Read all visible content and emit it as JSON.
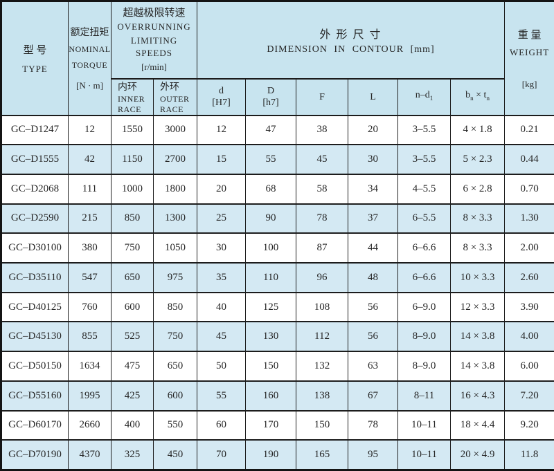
{
  "colors": {
    "header_bg": "#c8e4ef",
    "row_alt_bg": "#d4e9f3",
    "row_bg": "#ffffff",
    "border": "#1c1c1c",
    "text": "#262626"
  },
  "table": {
    "columns": [
      "type",
      "torque",
      "inner",
      "outer",
      "d",
      "D",
      "F",
      "L",
      "nd1",
      "bt",
      "weight"
    ],
    "header": {
      "type": {
        "zh": "型 号",
        "en": "TYPE"
      },
      "torque": {
        "zh": "额定扭矩",
        "en1": "NOMINAL",
        "en2": "TORQUE",
        "unit": "[N · m]"
      },
      "speeds": {
        "zh": "超越极限转速",
        "en1": "OVERRUNNING",
        "en2": "LIMITING SPEEDS",
        "unit": "[r/min]"
      },
      "inner": {
        "zh": "内环",
        "en1": "INNER",
        "en2": "RACE"
      },
      "outer": {
        "zh": "外环",
        "en1": "OUTER",
        "en2": "RACE"
      },
      "dimension": {
        "zh": "外 形 尺 寸",
        "en": "DIMENSION IN CONTOUR [mm]"
      },
      "d": {
        "line1": "d",
        "line2": "[H7]"
      },
      "D": {
        "line1": "D",
        "line2": "[h7]"
      },
      "F": "F",
      "L": "L",
      "nd1": {
        "base": "n–d",
        "sub": "1"
      },
      "bt": {
        "p1": "b",
        "s1": "n",
        "p2": " × t",
        "s2": "n"
      },
      "weight": {
        "zh": "重 量",
        "en": "WEIGHT",
        "unit": "[kg]"
      }
    },
    "rows": [
      {
        "type": "GC–D1247",
        "torque": "12",
        "inner": "1550",
        "outer": "3000",
        "d": "12",
        "D": "47",
        "F": "38",
        "L": "20",
        "nd1": "3–5.5",
        "bt": "4 × 1.8",
        "weight": "0.21"
      },
      {
        "type": "GC–D1555",
        "torque": "42",
        "inner": "1150",
        "outer": "2700",
        "d": "15",
        "D": "55",
        "F": "45",
        "L": "30",
        "nd1": "3–5.5",
        "bt": "5 × 2.3",
        "weight": "0.44"
      },
      {
        "type": "GC–D2068",
        "torque": "111",
        "inner": "1000",
        "outer": "1800",
        "d": "20",
        "D": "68",
        "F": "58",
        "L": "34",
        "nd1": "4–5.5",
        "bt": "6 × 2.8",
        "weight": "0.70"
      },
      {
        "type": "GC–D2590",
        "torque": "215",
        "inner": "850",
        "outer": "1300",
        "d": "25",
        "D": "90",
        "F": "78",
        "L": "37",
        "nd1": "6–5.5",
        "bt": "8 × 3.3",
        "weight": "1.30"
      },
      {
        "type": "GC–D30100",
        "torque": "380",
        "inner": "750",
        "outer": "1050",
        "d": "30",
        "D": "100",
        "F": "87",
        "L": "44",
        "nd1": "6–6.6",
        "bt": "8 × 3.3",
        "weight": "2.00"
      },
      {
        "type": "GC–D35110",
        "torque": "547",
        "inner": "650",
        "outer": "975",
        "d": "35",
        "D": "110",
        "F": "96",
        "L": "48",
        "nd1": "6–6.6",
        "bt": "10 × 3.3",
        "weight": "2.60"
      },
      {
        "type": "GC–D40125",
        "torque": "760",
        "inner": "600",
        "outer": "850",
        "d": "40",
        "D": "125",
        "F": "108",
        "L": "56",
        "nd1": "6–9.0",
        "bt": "12 × 3.3",
        "weight": "3.90"
      },
      {
        "type": "GC–D45130",
        "torque": "855",
        "inner": "525",
        "outer": "750",
        "d": "45",
        "D": "130",
        "F": "112",
        "L": "56",
        "nd1": "8–9.0",
        "bt": "14 × 3.8",
        "weight": "4.00"
      },
      {
        "type": "GC–D50150",
        "torque": "1634",
        "inner": "475",
        "outer": "650",
        "d": "50",
        "D": "150",
        "F": "132",
        "L": "63",
        "nd1": "8–9.0",
        "bt": "14 × 3.8",
        "weight": "6.00"
      },
      {
        "type": "GC–D55160",
        "torque": "1995",
        "inner": "425",
        "outer": "600",
        "d": "55",
        "D": "160",
        "F": "138",
        "L": "67",
        "nd1": "8–11",
        "bt": "16 × 4.3",
        "weight": "7.20"
      },
      {
        "type": "GC–D60170",
        "torque": "2660",
        "inner": "400",
        "outer": "550",
        "d": "60",
        "D": "170",
        "F": "150",
        "L": "78",
        "nd1": "10–11",
        "bt": "18 × 4.4",
        "weight": "9.20"
      },
      {
        "type": "GC–D70190",
        "torque": "4370",
        "inner": "325",
        "outer": "450",
        "d": "70",
        "D": "190",
        "F": "165",
        "L": "95",
        "nd1": "10–11",
        "bt": "20 × 4.9",
        "weight": "11.8"
      }
    ]
  }
}
